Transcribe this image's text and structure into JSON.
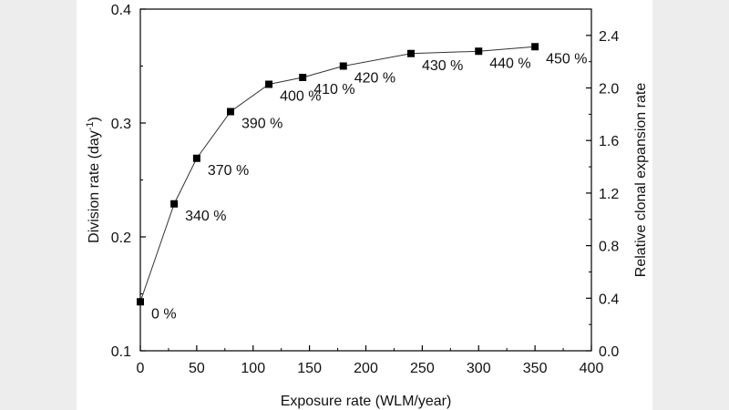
{
  "chart_data": {
    "type": "line",
    "title": "",
    "xlabel": "Exposure rate (WLM/year)",
    "ylabel": "Division rate (day",
    "ylabel_sup": "-1",
    "ylabel_close": ")",
    "y2label": "Relative clonal expansion rate",
    "xlim": [
      0,
      400
    ],
    "ylim": [
      0.1,
      0.4
    ],
    "y2lim": [
      0.0,
      2.6
    ],
    "x_ticks": [
      0,
      50,
      100,
      150,
      200,
      250,
      300,
      350,
      400
    ],
    "x_tick_labels": [
      "0",
      "50",
      "100",
      "150",
      "200",
      "250",
      "300",
      "350",
      "400"
    ],
    "y_ticks": [
      0.1,
      0.2,
      0.3,
      0.4
    ],
    "y_tick_labels": [
      "0.1",
      "0.2",
      "0.3",
      "0.4"
    ],
    "y2_ticks": [
      0.0,
      0.4,
      0.8,
      1.2,
      1.6,
      2.0,
      2.4
    ],
    "y2_tick_labels": [
      "0.0",
      "0.4",
      "0.8",
      "1.2",
      "1.6",
      "2.0",
      "2.4"
    ],
    "grid": false,
    "series": [
      {
        "name": "Division rate",
        "marker": "square",
        "x": [
          0,
          30,
          50,
          80,
          114,
          144,
          180,
          240,
          300,
          350
        ],
        "values": [
          0.143,
          0.229,
          0.269,
          0.31,
          0.334,
          0.34,
          0.35,
          0.361,
          0.363,
          0.367
        ],
        "point_labels": [
          "0 %",
          "340 %",
          "370 %",
          "390 %",
          "400 %",
          "410 %",
          "420 %",
          "430 %",
          "440 %",
          "450 %"
        ]
      }
    ]
  }
}
